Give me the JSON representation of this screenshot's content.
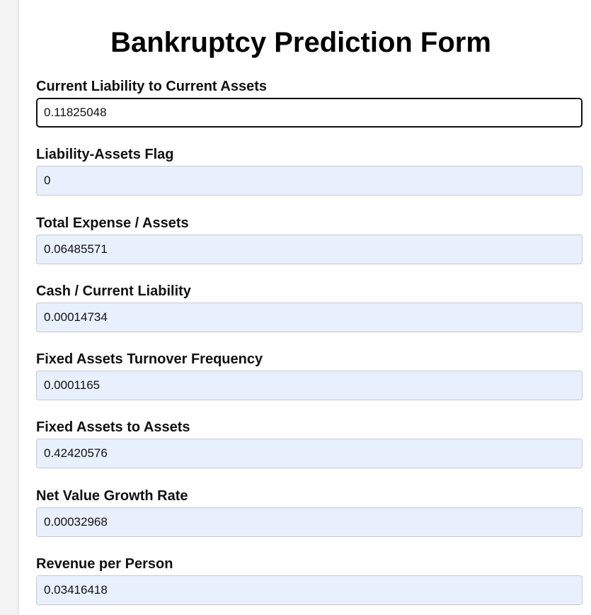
{
  "form": {
    "title": "Bankruptcy Prediction Form",
    "fields": [
      {
        "label": "Current Liability to Current Assets",
        "value": "0.11825048"
      },
      {
        "label": "Liability-Assets Flag",
        "value": "0"
      },
      {
        "label": "Total Expense / Assets",
        "value": "0.06485571"
      },
      {
        "label": "Cash / Current Liability",
        "value": "0.00014734"
      },
      {
        "label": "Fixed Assets Turnover Frequency",
        "value": "0.0001165"
      },
      {
        "label": "Fixed Assets to Assets",
        "value": "0.42420576"
      },
      {
        "label": "Net Value Growth Rate",
        "value": "0.00032968"
      },
      {
        "label": "Revenue per Person",
        "value": "0.03416418"
      }
    ]
  },
  "colors": {
    "autofill_background": "#e8f0fe",
    "focused_border": "#111111",
    "page_background": "#f4f4f4"
  }
}
